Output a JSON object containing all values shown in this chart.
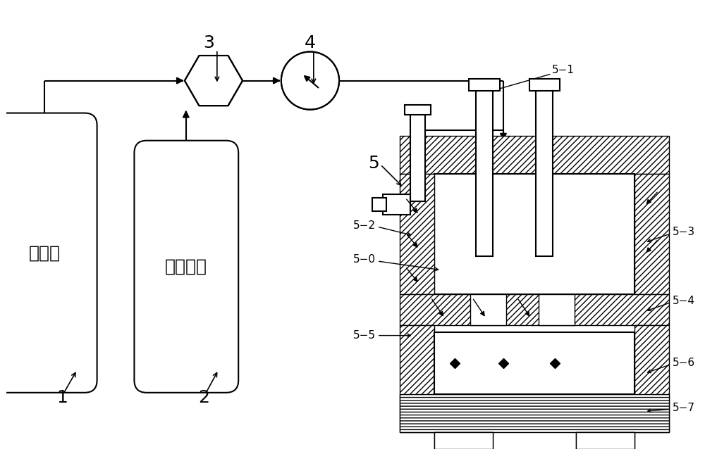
{
  "bg_color": "#ffffff",
  "line_color": "#000000",
  "tank1_text": "聚能剂",
  "tank2_text": "二氧化碳",
  "label_font_size": 14,
  "small_label_font_size": 11
}
